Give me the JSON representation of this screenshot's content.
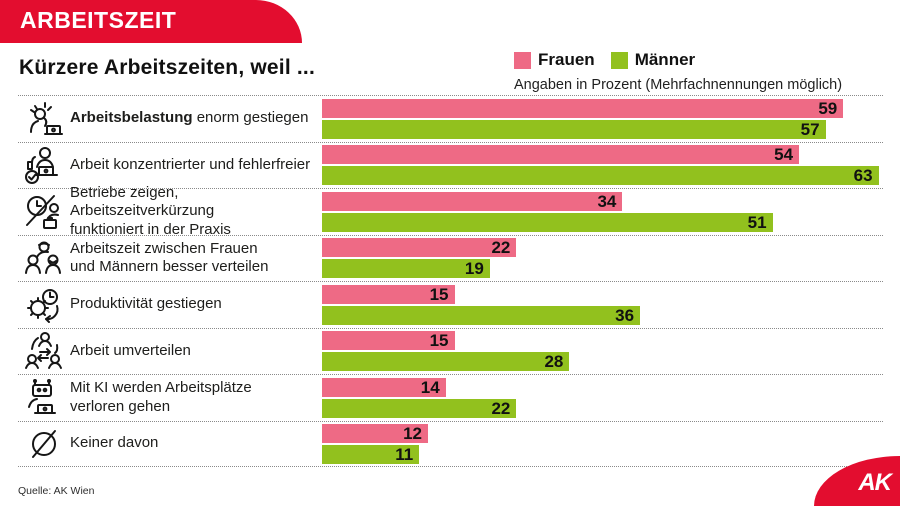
{
  "banner": {
    "title": "ARBEITSZEIT"
  },
  "header": {
    "title": "Kürzere Arbeitszeiten, weil ...",
    "subtitle": "Angaben in Prozent (Mehrfachnennungen möglich)"
  },
  "footer": {
    "source": "Quelle: AK Wien",
    "logo_text": "AK"
  },
  "chart_data": {
    "type": "bar",
    "orientation": "horizontal",
    "title": "Kürzere Arbeitszeiten, weil ...",
    "subtitle": "Angaben in Prozent (Mehrfachnennungen möglich)",
    "legend_position": "top-right",
    "grid": false,
    "xmax": 63.5,
    "xlim": [
      0,
      65
    ],
    "categories": [
      "Arbeitsbelastung enorm gestiegen",
      "Arbeit konzentrierter und fehlerfreier",
      "Betriebe zeigen, Arbeitszeitverkürzung funktioniert in der Praxis",
      "Arbeitszeit zwischen Frauen und Männern besser verteilen",
      "Produktivität gestiegen",
      "Arbeit umverteilen",
      "Mit KI werden Arbeitsplätze verloren gehen",
      "Keiner davon"
    ],
    "categories_rich": [
      [
        {
          "t": "Arbeitsbelastung",
          "b": 1
        },
        {
          "t": " enorm gestiegen"
        }
      ],
      [
        {
          "t": "Arbeit konzentrierter und fehlerfreier"
        }
      ],
      [
        {
          "t": "Betriebe zeigen, Arbeitszeitverkürzung"
        },
        {
          "br": 1
        },
        {
          "t": "funktioniert in der Praxis"
        }
      ],
      [
        {
          "t": "Arbeitszeit zwischen Frauen"
        },
        {
          "br": 1
        },
        {
          "t": "und Männern besser verteilen"
        }
      ],
      [
        {
          "t": "Produktivität gestiegen"
        }
      ],
      [
        {
          "t": "Arbeit umverteilen"
        }
      ],
      [
        {
          "t": "Mit KI werden Arbeitsplätze"
        },
        {
          "br": 1
        },
        {
          "t": "verloren gehen"
        }
      ],
      [
        {
          "t": "Keiner davon"
        }
      ]
    ],
    "icons": [
      "stress-laptop-icon",
      "thumbs-up-laptop-icon",
      "clock-crossed-icon",
      "people-group-icon",
      "gear-clock-icon",
      "swap-people-icon",
      "robot-laptop-icon",
      "none-icon"
    ],
    "series": [
      {
        "name": "Frauen",
        "color": "#ee6a85",
        "values": [
          59,
          54,
          34,
          22,
          15,
          15,
          14,
          12
        ]
      },
      {
        "name": "Männer",
        "color": "#92c11e",
        "values": [
          57,
          63,
          51,
          19,
          36,
          28,
          22,
          11
        ]
      }
    ],
    "colors": {
      "banner_red": "#e30d2f",
      "frauen_pink": "#ee6a85",
      "maenner_green": "#92c11e"
    }
  }
}
